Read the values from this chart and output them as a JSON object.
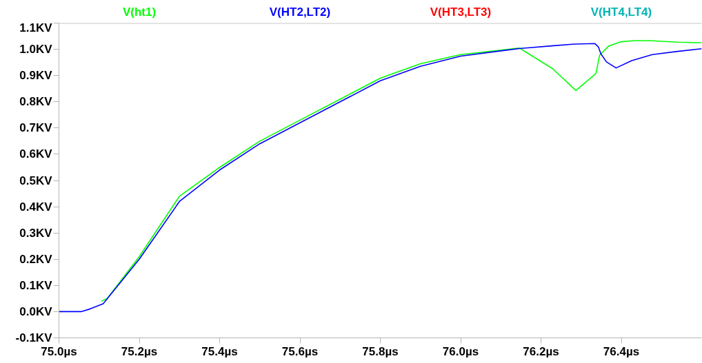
{
  "chart_data": {
    "type": "line",
    "xlim": [
      75.0,
      76.6
    ],
    "ylim": [
      -0.1,
      1.1
    ],
    "xticks": [
      {
        "value": 75.0,
        "label": "75.0µs"
      },
      {
        "value": 75.2,
        "label": "75.2µs"
      },
      {
        "value": 75.4,
        "label": "75.4µs"
      },
      {
        "value": 75.6,
        "label": "75.6µs"
      },
      {
        "value": 75.8,
        "label": "75.8µs"
      },
      {
        "value": 76.0,
        "label": "76.0µs"
      },
      {
        "value": 76.2,
        "label": "76.2µs"
      },
      {
        "value": 76.4,
        "label": "76.4µs"
      }
    ],
    "yticks": [
      {
        "value": -0.1,
        "label": "-0.1KV"
      },
      {
        "value": 0.0,
        "label": "0.0KV"
      },
      {
        "value": 0.1,
        "label": "0.1KV"
      },
      {
        "value": 0.2,
        "label": "0.2KV"
      },
      {
        "value": 0.3,
        "label": "0.3KV"
      },
      {
        "value": 0.4,
        "label": "0.4KV"
      },
      {
        "value": 0.5,
        "label": "0.5KV"
      },
      {
        "value": 0.6,
        "label": "0.6KV"
      },
      {
        "value": 0.7,
        "label": "0.7KV"
      },
      {
        "value": 0.8,
        "label": "0.8KV"
      },
      {
        "value": 0.9,
        "label": "0.9KV"
      },
      {
        "value": 1.0,
        "label": "1.0KV"
      },
      {
        "value": 1.1,
        "label": "1.1KV"
      }
    ],
    "grid": false,
    "marker": "none",
    "line_style": "solid",
    "series": [
      {
        "name": "V(ht1)",
        "color": "#00ff00",
        "x": [
          75.106,
          75.12,
          75.2,
          75.3,
          75.4,
          75.5,
          75.6,
          75.7,
          75.8,
          75.9,
          76.0,
          76.1,
          76.146,
          76.229,
          76.287,
          76.337,
          76.346,
          76.369,
          76.397,
          76.431,
          76.47,
          76.54,
          76.6
        ],
        "values": [
          0.04,
          0.05,
          0.21,
          0.44,
          0.55,
          0.65,
          0.73,
          0.81,
          0.89,
          0.945,
          0.98,
          0.997,
          1.005,
          0.926,
          0.843,
          0.908,
          0.978,
          1.013,
          1.028,
          1.033,
          1.033,
          1.027,
          1.025
        ]
      },
      {
        "name": "V(HT2,LT2)",
        "color": "#0000ff",
        "x": [
          75.0,
          75.055,
          75.077,
          75.11,
          75.2,
          75.3,
          75.4,
          75.5,
          75.6,
          75.7,
          75.8,
          75.9,
          76.0,
          76.1,
          76.146,
          76.226,
          76.283,
          76.334,
          76.343,
          76.349,
          76.363,
          76.387,
          76.426,
          76.477,
          76.54,
          76.6
        ],
        "values": [
          0.0,
          0.0,
          0.01,
          0.03,
          0.2,
          0.42,
          0.54,
          0.64,
          0.72,
          0.8,
          0.88,
          0.935,
          0.974,
          0.994,
          1.003,
          1.013,
          1.02,
          1.022,
          1.009,
          0.983,
          0.952,
          0.929,
          0.957,
          0.98,
          0.992,
          1.002
        ]
      },
      {
        "name": "V(HT3,LT3)",
        "color": "#ff0000"
      },
      {
        "name": "V(HT4,LT4)",
        "color": "#00b4b4"
      }
    ]
  }
}
